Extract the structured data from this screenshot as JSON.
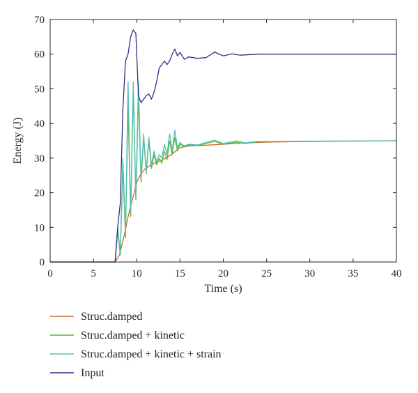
{
  "chart_data": {
    "type": "line",
    "xlabel": "Time (s)",
    "ylabel": "Energy (J)",
    "xlim": [
      0,
      40
    ],
    "ylim": [
      0,
      70
    ],
    "xticks": [
      0,
      5,
      10,
      15,
      20,
      25,
      30,
      35,
      40
    ],
    "yticks": [
      0,
      10,
      20,
      30,
      40,
      50,
      60,
      70
    ],
    "grid": false,
    "legend_position": "below",
    "series": [
      {
        "name": "Struc.damped",
        "color": "#d4622a",
        "x": [
          0,
          7.5,
          8,
          8.5,
          9,
          9.5,
          10,
          10.5,
          11,
          12,
          13,
          14,
          15,
          16,
          18,
          20,
          22,
          25,
          30,
          35,
          40
        ],
        "values": [
          0,
          0,
          2,
          7,
          13,
          18,
          23,
          25.5,
          27,
          28.5,
          29.5,
          31,
          33,
          33.5,
          33.7,
          34,
          34.3,
          34.6,
          34.8,
          34.9,
          35
        ]
      },
      {
        "name": "Struc.damped + kinetic",
        "color": "#5ab33c",
        "x": [
          0,
          7.5,
          7.8,
          8.1,
          8.4,
          8.7,
          9.0,
          9.3,
          9.6,
          9.9,
          10.2,
          10.5,
          10.8,
          11.1,
          11.4,
          11.7,
          12.0,
          12.3,
          12.6,
          12.9,
          13.2,
          13.5,
          13.8,
          14.1,
          14.4,
          14.7,
          15.0,
          15.5,
          16.0,
          17.0,
          18.0,
          19.0,
          20.0,
          21.5,
          22.5,
          24.0,
          25,
          30,
          40
        ],
        "values": [
          0,
          0,
          9,
          2,
          27,
          7,
          45,
          13,
          49,
          18,
          48,
          23,
          36,
          25.5,
          35,
          27,
          31,
          28,
          30,
          28.5,
          32,
          29.5,
          35,
          31,
          36,
          32,
          34,
          33.2,
          33.8,
          33.6,
          34.2,
          34.8,
          34,
          34.6,
          34.2,
          34.7,
          34.7,
          34.8,
          35
        ]
      },
      {
        "name": "Struc.damped + kinetic + strain",
        "color": "#4fc0b4",
        "x": [
          0,
          7.5,
          7.8,
          8.1,
          8.4,
          8.7,
          9.0,
          9.3,
          9.6,
          9.9,
          10.2,
          10.5,
          10.8,
          11.1,
          11.4,
          11.7,
          12.0,
          12.3,
          12.6,
          12.9,
          13.2,
          13.5,
          13.8,
          14.1,
          14.4,
          14.7,
          15.0,
          15.5,
          16.0,
          17.0,
          18.0,
          19.0,
          20.0,
          21.5,
          22.5,
          24.0,
          25,
          30,
          40
        ],
        "values": [
          0,
          0,
          10,
          3,
          30,
          8,
          52,
          14,
          52,
          19,
          52,
          24,
          37,
          26,
          36,
          28,
          32,
          29,
          31,
          30,
          34,
          31,
          37,
          32,
          38,
          33,
          34.5,
          33.5,
          34,
          33.8,
          34.5,
          35.2,
          34.2,
          35,
          34.4,
          34.8,
          34.8,
          34.9,
          35
        ]
      },
      {
        "name": "Input",
        "color": "#2f2f8a",
        "x": [
          0,
          7.5,
          7.8,
          8.1,
          8.4,
          8.7,
          9.0,
          9.3,
          9.6,
          9.9,
          10.2,
          10.5,
          10.8,
          11.1,
          11.4,
          11.7,
          12.0,
          12.3,
          12.6,
          12.9,
          13.2,
          13.5,
          13.8,
          14.1,
          14.4,
          14.7,
          15.0,
          15.5,
          16.0,
          17.0,
          18.0,
          19.0,
          20.0,
          21.0,
          22.0,
          24.0,
          26.0,
          30,
          40
        ],
        "values": [
          0,
          0,
          10,
          17,
          44,
          58,
          60,
          65,
          67,
          66,
          48,
          46,
          47,
          48,
          48.5,
          47,
          49,
          52,
          56,
          57,
          58,
          57,
          58,
          60,
          61.5,
          59.5,
          60.5,
          58.5,
          59.2,
          58.8,
          59,
          60.6,
          59.5,
          60.1,
          59.7,
          60,
          60,
          60,
          60
        ]
      }
    ]
  }
}
